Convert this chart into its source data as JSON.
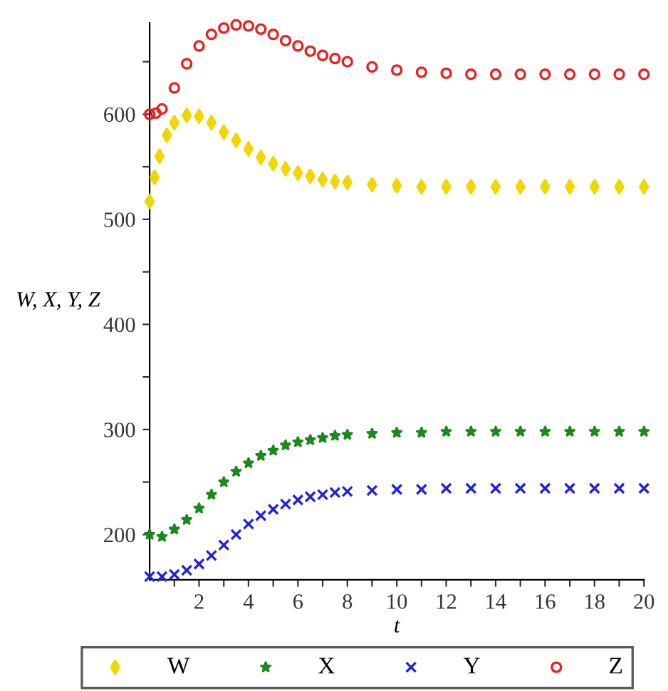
{
  "chart_data": {
    "type": "scatter",
    "xlabel": "t",
    "ylabel": "W, X, Y, Z",
    "xlim": [
      0,
      20
    ],
    "ylim": [
      157,
      687
    ],
    "xticks": [
      {
        "value": 1,
        "label": null
      },
      2,
      {
        "value": 3,
        "label": null
      },
      4,
      {
        "value": 5,
        "label": null
      },
      6,
      {
        "value": 7,
        "label": null
      },
      8,
      {
        "value": 9,
        "label": null
      },
      10,
      {
        "value": 11,
        "label": null
      },
      12,
      {
        "value": 13,
        "label": null
      },
      14,
      {
        "value": 15,
        "label": null
      },
      16,
      {
        "value": 17,
        "label": null
      },
      18,
      {
        "value": 19,
        "label": null
      },
      20
    ],
    "yticks": [
      200,
      {
        "value": 250,
        "label": null
      },
      300,
      {
        "value": 350,
        "label": null
      },
      400,
      {
        "value": 450,
        "label": null
      },
      500,
      {
        "value": 550,
        "label": null
      },
      600,
      {
        "value": 650,
        "label": null
      }
    ],
    "grid": false,
    "legend": "bottom",
    "series": [
      {
        "name": "W",
        "color": "#f2d600",
        "marker": "diamond",
        "x": [
          0,
          0.2,
          0.4,
          0.7,
          1,
          1.5,
          2,
          2.5,
          3,
          3.5,
          4,
          4.5,
          5,
          5.5,
          6,
          6.5,
          7,
          7.5,
          8,
          9,
          10,
          11,
          12,
          13,
          14,
          15,
          16,
          17,
          18,
          19,
          20
        ],
        "values": [
          517,
          540,
          560,
          580,
          592,
          599,
          598,
          592,
          583,
          575,
          567,
          559,
          553,
          548,
          544,
          541,
          538,
          536,
          535,
          533,
          532,
          531,
          531,
          531,
          531,
          531,
          531,
          531,
          531,
          531,
          531
        ]
      },
      {
        "name": "X",
        "color": "#1a8a1a",
        "marker": "star",
        "x": [
          0,
          0.5,
          1,
          1.5,
          2,
          2.5,
          3,
          3.5,
          4,
          4.5,
          5,
          5.5,
          6,
          6.5,
          7,
          7.5,
          8,
          9,
          10,
          11,
          12,
          13,
          14,
          15,
          16,
          17,
          18,
          19,
          20
        ],
        "values": [
          200,
          198,
          205,
          214,
          225,
          238,
          250,
          260,
          268,
          275,
          280,
          285,
          288,
          290,
          292,
          294,
          295,
          296,
          297,
          297,
          298,
          298,
          298,
          298,
          298,
          298,
          298,
          298,
          298
        ]
      },
      {
        "name": "Y",
        "color": "#2020e0",
        "marker": "cross",
        "x": [
          0,
          0.5,
          1,
          1.5,
          2,
          2.5,
          3,
          3.5,
          4,
          4.5,
          5,
          5.5,
          6,
          6.5,
          7,
          7.5,
          8,
          9,
          10,
          11,
          12,
          13,
          14,
          15,
          16,
          17,
          18,
          19,
          20
        ],
        "values": [
          160,
          160,
          162,
          166,
          172,
          180,
          190,
          200,
          210,
          218,
          224,
          229,
          233,
          236,
          238,
          240,
          241,
          242,
          243,
          243,
          244,
          244,
          244,
          244,
          244,
          244,
          244,
          244,
          244
        ]
      },
      {
        "name": "Z",
        "color": "#e82020",
        "marker": "circle",
        "x": [
          0,
          0.25,
          0.5,
          1,
          1.5,
          2,
          2.5,
          3,
          3.5,
          4,
          4.5,
          5,
          5.5,
          6,
          6.5,
          7,
          7.5,
          8,
          9,
          10,
          11,
          12,
          13,
          14,
          15,
          16,
          17,
          18,
          19,
          20
        ],
        "values": [
          600,
          601,
          605,
          625,
          648,
          665,
          676,
          682,
          685,
          684,
          681,
          676,
          670,
          665,
          660,
          656,
          653,
          650,
          645,
          642,
          640,
          639,
          638,
          638,
          638,
          638,
          638,
          638,
          638,
          638
        ]
      }
    ]
  }
}
